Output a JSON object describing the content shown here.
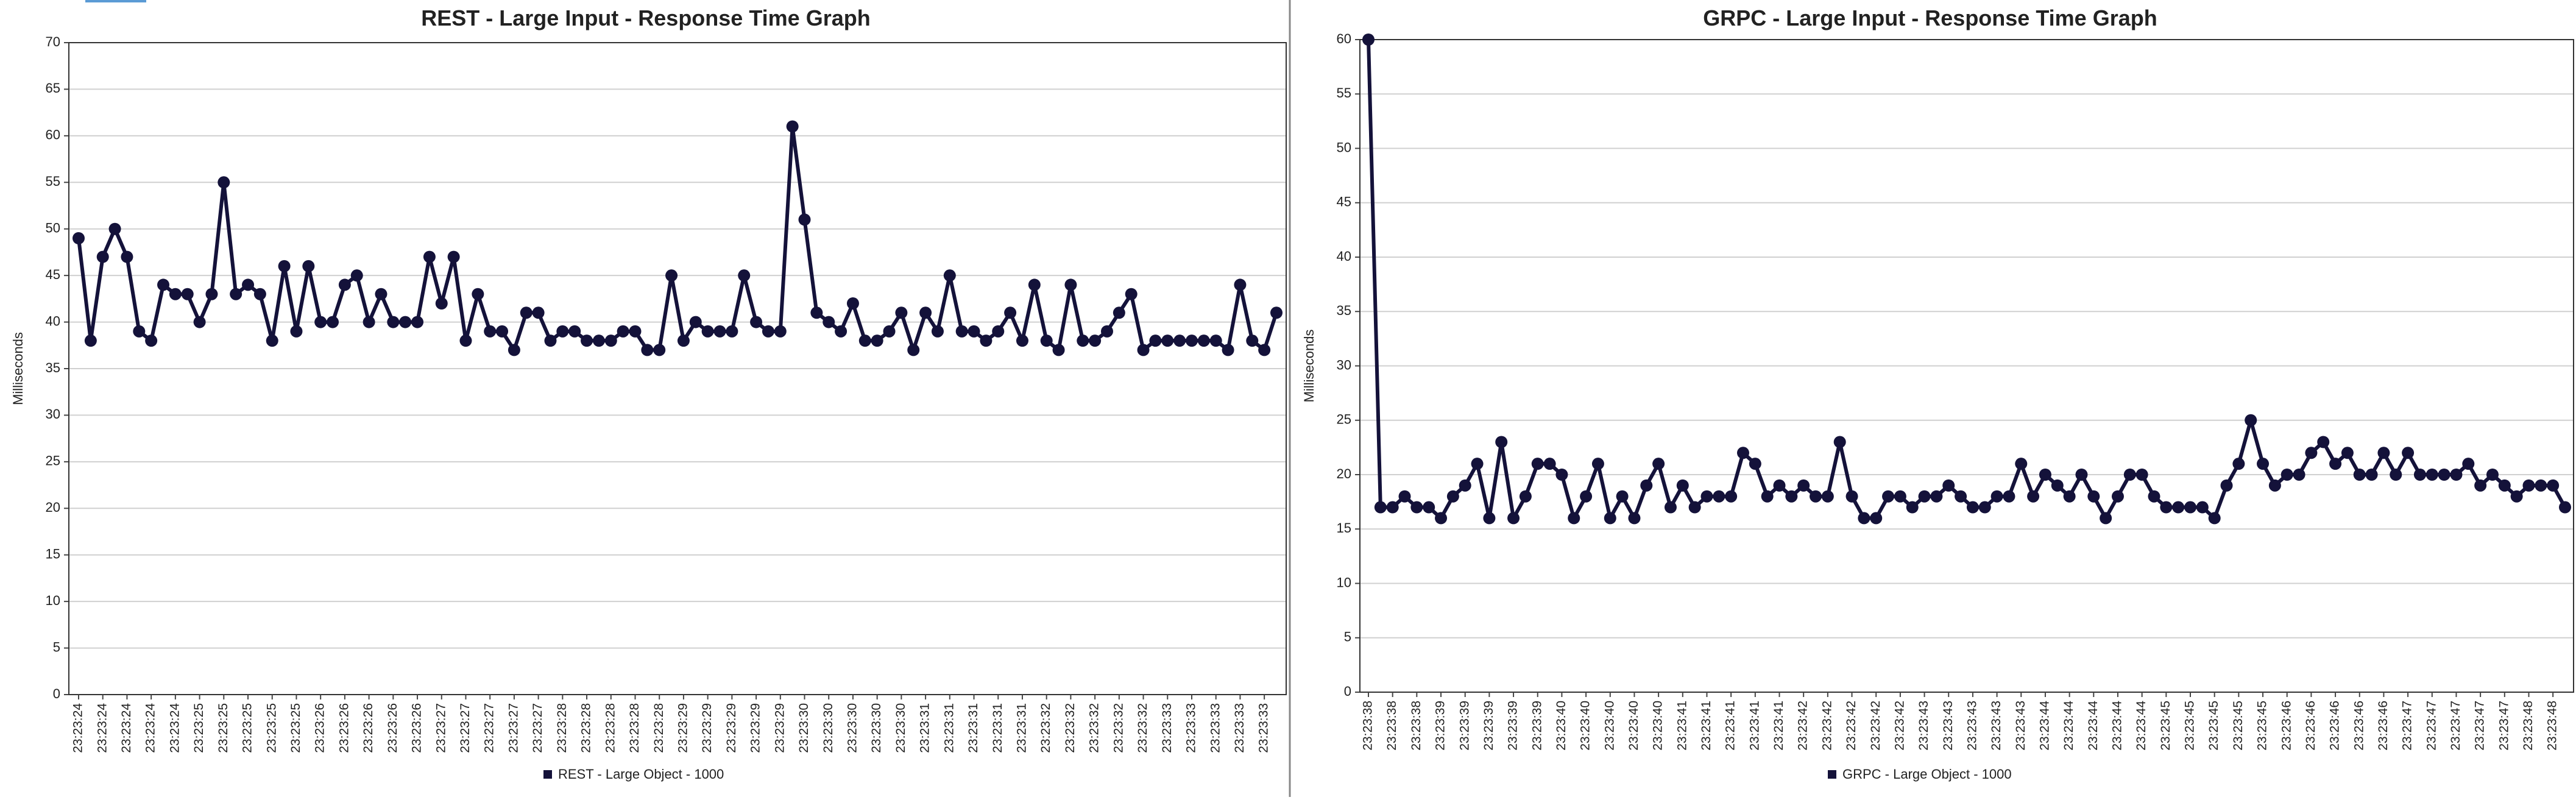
{
  "chart_data": [
    {
      "type": "line",
      "title": "REST - Large Input - Response Time Graph",
      "y_label": "Milliseconds",
      "categories": [
        "23:23:24",
        null,
        "23:23:24",
        null,
        "23:23:24",
        null,
        "23:23:24",
        null,
        "23:23:24",
        null,
        "23:23:25",
        null,
        "23:23:25",
        null,
        "23:23:25",
        null,
        "23:23:25",
        null,
        "23:23:25",
        null,
        "23:23:26",
        null,
        "23:23:26",
        null,
        "23:23:26",
        null,
        "23:23:26",
        null,
        "23:23:26",
        null,
        "23:23:27",
        null,
        "23:23:27",
        null,
        "23:23:27",
        null,
        "23:23:27",
        null,
        "23:23:27",
        null,
        "23:23:28",
        null,
        "23:23:28",
        null,
        "23:23:28",
        null,
        "23:23:28",
        null,
        "23:23:28",
        null,
        "23:23:29",
        null,
        "23:23:29",
        null,
        "23:23:29",
        null,
        "23:23:29",
        null,
        "23:23:29",
        null,
        "23:23:30",
        null,
        "23:23:30",
        null,
        "23:23:30",
        null,
        "23:23:30",
        null,
        "23:23:30",
        null,
        "23:23:31",
        null,
        "23:23:31",
        null,
        "23:23:31",
        null,
        "23:23:31",
        null,
        "23:23:31",
        null,
        "23:23:32",
        null,
        "23:23:32",
        null,
        "23:23:32",
        null,
        "23:23:32",
        null,
        "23:23:32",
        null,
        "23:23:33",
        null,
        "23:23:33",
        null,
        "23:23:33",
        null,
        "23:23:33",
        null,
        "23:23:33",
        null
      ],
      "series": [
        {
          "name": "REST - Large Object - 1000",
          "color": "#14123a",
          "values": [
            49,
            38,
            47,
            50,
            47,
            39,
            38,
            44,
            43,
            43,
            40,
            43,
            55,
            43,
            44,
            43,
            38,
            46,
            39,
            46,
            40,
            40,
            44,
            45,
            40,
            43,
            40,
            40,
            40,
            47,
            42,
            47,
            38,
            43,
            39,
            39,
            37,
            41,
            41,
            38,
            39,
            39,
            38,
            38,
            38,
            39,
            39,
            37,
            37,
            45,
            38,
            40,
            39,
            39,
            39,
            45,
            40,
            39,
            39,
            61,
            51,
            41,
            40,
            39,
            42,
            38,
            38,
            39,
            41,
            37,
            41,
            39,
            45,
            39,
            39,
            38,
            39,
            41,
            38,
            44,
            38,
            37,
            44,
            38,
            38,
            39,
            41,
            43,
            37,
            38,
            38,
            38,
            38,
            38,
            38,
            37,
            44,
            38,
            37,
            41
          ]
        }
      ],
      "ylim": [
        0,
        70
      ],
      "yticks": [
        0,
        5,
        10,
        15,
        20,
        25,
        30,
        35,
        40,
        45,
        50,
        55,
        60,
        65,
        70
      ],
      "grid": true
    },
    {
      "type": "line",
      "title": "GRPC - Large Input - Response Time Graph",
      "y_label": "Milliseconds",
      "categories": [
        "23:23:38",
        null,
        "23:23:38",
        null,
        "23:23:38",
        null,
        "23:23:39",
        null,
        "23:23:39",
        null,
        "23:23:39",
        null,
        "23:23:39",
        null,
        "23:23:39",
        null,
        "23:23:40",
        null,
        "23:23:40",
        null,
        "23:23:40",
        null,
        "23:23:40",
        null,
        "23:23:40",
        null,
        "23:23:41",
        null,
        "23:23:41",
        null,
        "23:23:41",
        null,
        "23:23:41",
        null,
        "23:23:41",
        null,
        "23:23:42",
        null,
        "23:23:42",
        null,
        "23:23:42",
        null,
        "23:23:42",
        null,
        "23:23:42",
        null,
        "23:23:43",
        null,
        "23:23:43",
        null,
        "23:23:43",
        null,
        "23:23:43",
        null,
        "23:23:43",
        null,
        "23:23:44",
        null,
        "23:23:44",
        null,
        "23:23:44",
        null,
        "23:23:44",
        null,
        "23:23:44",
        null,
        "23:23:45",
        null,
        "23:23:45",
        null,
        "23:23:45",
        null,
        "23:23:45",
        null,
        "23:23:45",
        null,
        "23:23:46",
        null,
        "23:23:46",
        null,
        "23:23:46",
        null,
        "23:23:46",
        null,
        "23:23:46",
        null,
        "23:23:47",
        null,
        "23:23:47",
        null,
        "23:23:47",
        null,
        "23:23:47",
        null,
        "23:23:47",
        null,
        "23:23:48",
        null,
        "23:23:48",
        null
      ],
      "series": [
        {
          "name": "GRPC - Large Object - 1000",
          "color": "#14123a",
          "values": [
            60,
            17,
            17,
            18,
            17,
            17,
            16,
            18,
            19,
            21,
            16,
            23,
            16,
            18,
            21,
            21,
            20,
            16,
            18,
            21,
            16,
            18,
            16,
            19,
            21,
            17,
            19,
            17,
            18,
            18,
            18,
            22,
            21,
            18,
            19,
            18,
            19,
            18,
            18,
            23,
            18,
            16,
            16,
            18,
            18,
            17,
            18,
            18,
            19,
            18,
            17,
            17,
            18,
            18,
            21,
            18,
            20,
            19,
            18,
            20,
            18,
            16,
            18,
            20,
            20,
            18,
            17,
            17,
            17,
            17,
            16,
            19,
            21,
            25,
            21,
            19,
            20,
            20,
            22,
            23,
            21,
            22,
            20,
            20,
            22,
            20,
            22,
            20,
            20,
            20,
            20,
            21,
            19,
            20,
            19,
            18,
            19,
            19,
            19,
            17
          ]
        }
      ],
      "ylim": [
        0,
        60
      ],
      "yticks": [
        0,
        5,
        10,
        15,
        20,
        25,
        30,
        35,
        40,
        45,
        50,
        55,
        60
      ],
      "grid": true
    }
  ]
}
